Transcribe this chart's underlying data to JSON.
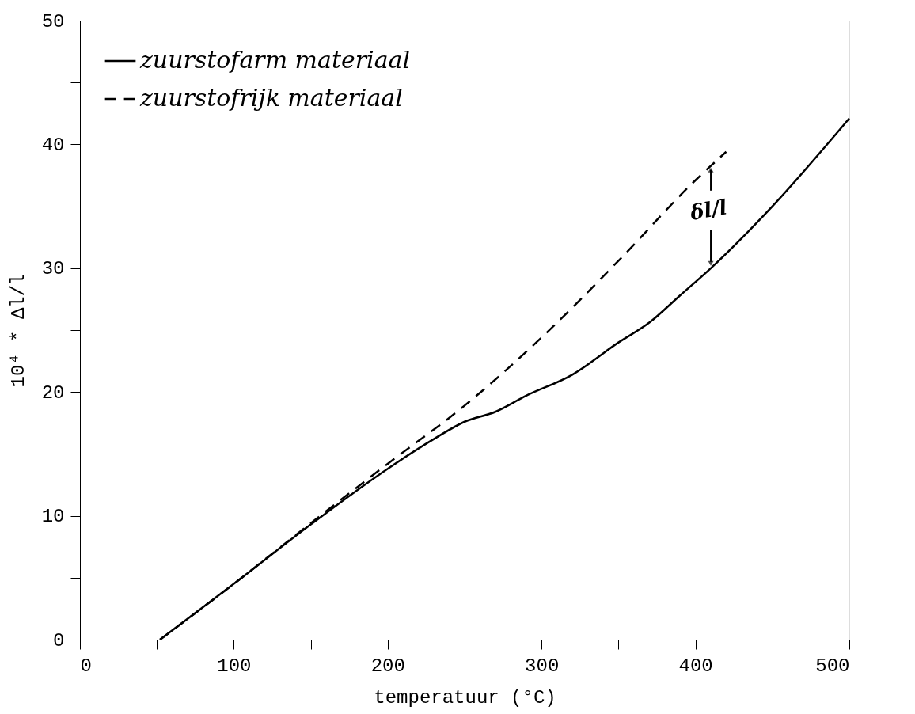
{
  "chart_data": {
    "type": "line",
    "xlabel": "temperatuur (°C)",
    "ylabel": "10⁴ * Δl/l",
    "xlim": [
      0,
      500
    ],
    "ylim": [
      0,
      50
    ],
    "xticks": [
      0,
      {
        "value": 50,
        "label": null
      },
      100,
      {
        "value": 150,
        "label": null
      },
      200,
      {
        "value": 250,
        "label": null
      },
      300,
      {
        "value": 350,
        "label": null
      },
      400,
      {
        "value": 450,
        "label": null
      },
      500
    ],
    "yticks": [
      0,
      {
        "value": 5,
        "label": null
      },
      10,
      {
        "value": 15,
        "label": null
      },
      20,
      {
        "value": 25,
        "label": null
      },
      30,
      {
        "value": 35,
        "label": null
      },
      40,
      {
        "value": 45,
        "label": null
      },
      50
    ],
    "grid": false,
    "legend": "top left",
    "marker": "none",
    "series": [
      {
        "name": "zuurstofarm materiaal",
        "color": "#000000",
        "line_style": "solid",
        "x": [
          52,
          100,
          150,
          200,
          230,
          250,
          270,
          290,
          320,
          350,
          370,
          390,
          410,
          450,
          500
        ],
        "values": [
          0,
          4.5,
          9.3,
          13.8,
          16.2,
          17.6,
          18.4,
          19.7,
          21.4,
          24,
          25.6,
          27.8,
          30,
          35,
          42.1
        ]
      },
      {
        "name": "zuurstofrijk materiaal",
        "color": "#000000",
        "line_style": "dashed",
        "x": [
          52,
          100,
          150,
          200,
          250,
          300,
          350,
          400,
          420
        ],
        "values": [
          0,
          4.5,
          9.4,
          14.2,
          18.9,
          24.4,
          30.6,
          37.1,
          39.4
        ]
      }
    ],
    "annotations": [
      {
        "text": "δl/l",
        "x": 410,
        "y": 30
      }
    ]
  }
}
